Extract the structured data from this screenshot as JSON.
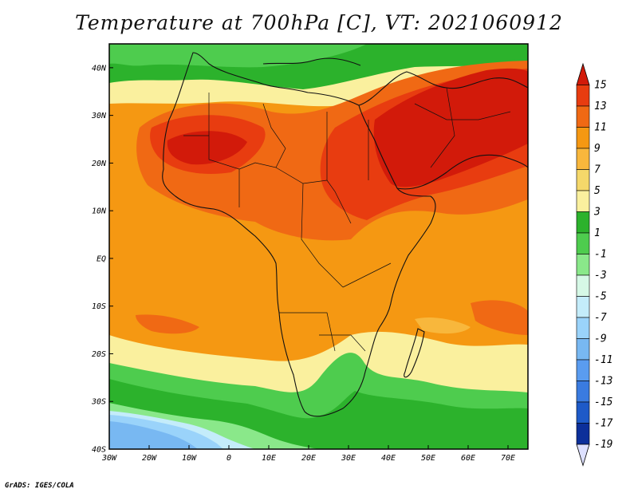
{
  "title": "Temperature at 700hPa [C], VT: 2021060912",
  "footer": "GrADS: IGES/COLA",
  "map": {
    "lon_range": [
      -30,
      75
    ],
    "lat_range": [
      -40,
      45
    ],
    "lon_ticks": [
      {
        "value": -30,
        "label": "30W"
      },
      {
        "value": -20,
        "label": "20W"
      },
      {
        "value": -10,
        "label": "10W"
      },
      {
        "value": 0,
        "label": "0"
      },
      {
        "value": 10,
        "label": "10E"
      },
      {
        "value": 20,
        "label": "20E"
      },
      {
        "value": 30,
        "label": "30E"
      },
      {
        "value": 40,
        "label": "40E"
      },
      {
        "value": 50,
        "label": "50E"
      },
      {
        "value": 60,
        "label": "60E"
      },
      {
        "value": 70,
        "label": "70E"
      }
    ],
    "lat_ticks": [
      {
        "value": 40,
        "label": "40N"
      },
      {
        "value": 30,
        "label": "30N"
      },
      {
        "value": 20,
        "label": "20N"
      },
      {
        "value": 10,
        "label": "10N"
      },
      {
        "value": 0,
        "label": "EQ"
      },
      {
        "value": -10,
        "label": "10S"
      },
      {
        "value": -20,
        "label": "20S"
      },
      {
        "value": -30,
        "label": "30S"
      },
      {
        "value": -40,
        "label": "40S"
      }
    ]
  },
  "colorbar": {
    "levels": [
      "15",
      "13",
      "11",
      "9",
      "7",
      "5",
      "3",
      "1",
      "-1",
      "-3",
      "-5",
      "-7",
      "-9",
      "-11",
      "-13",
      "-15",
      "-17",
      "-19"
    ],
    "colors": [
      "#d21a0a",
      "#e83c10",
      "#f06914",
      "#f59812",
      "#f8b73c",
      "#f5d86a",
      "#faf09e",
      "#2cb22c",
      "#4ecc4e",
      "#8ae88a",
      "#d6f8e6",
      "#c4ecfa",
      "#9ad3fa",
      "#78b8f2",
      "#5a9cf0",
      "#3a7be0",
      "#1e5ac8",
      "#0c2f9a",
      "#0a157a"
    ]
  }
}
